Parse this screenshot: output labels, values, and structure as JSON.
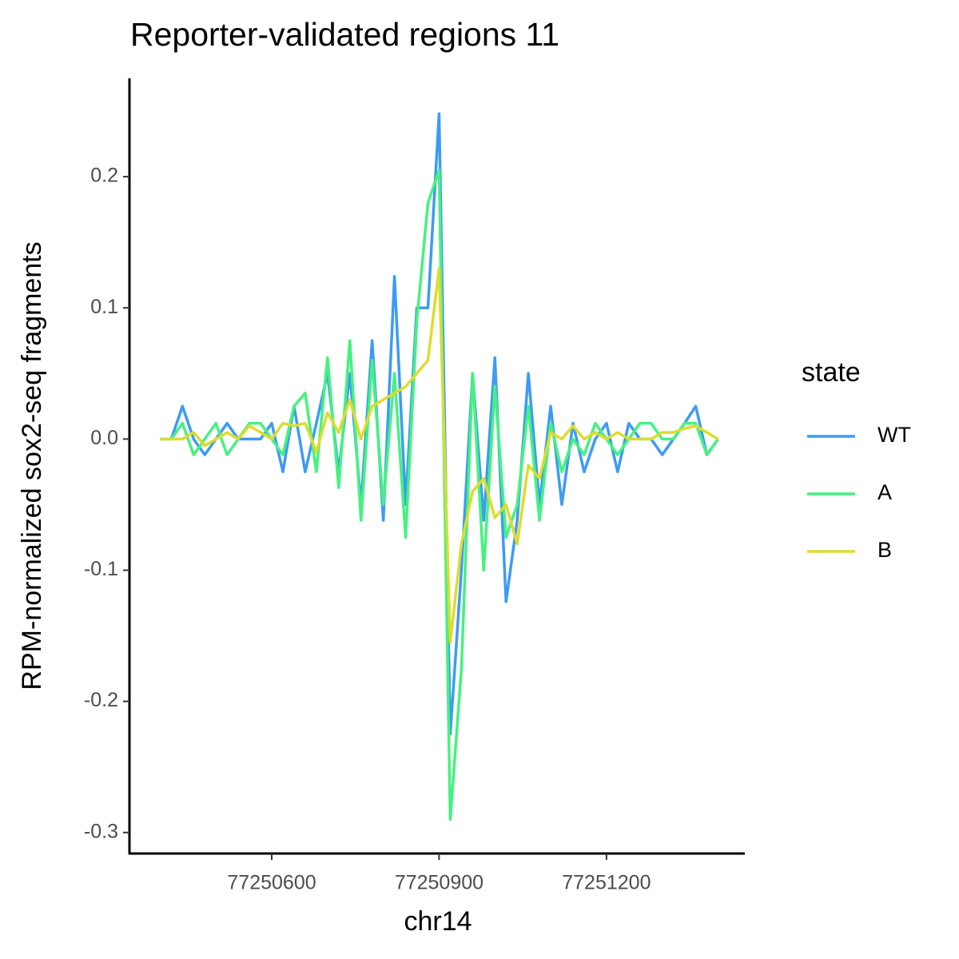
{
  "chart_data": {
    "type": "line",
    "title": "Reporter-validated regions 11",
    "x_label": "chr14",
    "y_label": "RPM-normalized sox2-seq fragments",
    "legend_title": "state",
    "legend_position": "right",
    "x": [
      77250400,
      77250420,
      77250440,
      77250460,
      77250480,
      77250500,
      77250520,
      77250540,
      77250560,
      77250580,
      77250600,
      77250620,
      77250640,
      77250660,
      77250680,
      77250700,
      77250720,
      77250740,
      77250760,
      77250780,
      77250800,
      77250820,
      77250840,
      77250860,
      77250880,
      77250900,
      77250920,
      77250940,
      77250960,
      77250980,
      77251000,
      77251020,
      77251040,
      77251060,
      77251080,
      77251100,
      77251120,
      77251140,
      77251160,
      77251180,
      77251200,
      77251220,
      77251240,
      77251260,
      77251280,
      77251300,
      77251320,
      77251340,
      77251360,
      77251380,
      77251400
    ],
    "series": [
      {
        "name": "WT",
        "color": "#3d9bf5",
        "values": [
          0,
          0,
          0.025,
          0,
          -0.012,
          0,
          0.012,
          0,
          0,
          0,
          0.012,
          -0.025,
          0.025,
          -0.025,
          0.012,
          0.05,
          -0.025,
          0.05,
          -0.05,
          0.075,
          -0.062,
          0.124,
          -0.05,
          0.1,
          0.1,
          0.248,
          -0.225,
          -0.1,
          0.05,
          -0.062,
          0.062,
          -0.124,
          -0.062,
          0.05,
          -0.05,
          0.025,
          -0.05,
          0.012,
          -0.025,
          0,
          0.012,
          -0.025,
          0.012,
          0,
          0,
          -0.012,
          0,
          0.012,
          0.025,
          -0.012,
          0
        ]
      },
      {
        "name": "A",
        "color": "#45f27f",
        "values": [
          0,
          0,
          0.012,
          -0.012,
          0,
          0.012,
          -0.012,
          0,
          0.012,
          0.012,
          0,
          -0.012,
          0.025,
          0.035,
          -0.025,
          0.062,
          -0.037,
          0.075,
          -0.062,
          0.06,
          -0.05,
          0.05,
          -0.075,
          0.09,
          0.18,
          0.205,
          -0.29,
          -0.175,
          0.05,
          -0.1,
          0.04,
          -0.075,
          -0.05,
          0.025,
          -0.062,
          0.012,
          -0.025,
          0,
          -0.012,
          0.012,
          0,
          -0.012,
          0,
          0.012,
          0.012,
          0,
          0,
          0.012,
          0.012,
          -0.012,
          0
        ]
      },
      {
        "name": "B",
        "color": "#dcdc30",
        "values": [
          0,
          0,
          0,
          0.005,
          -0.005,
          0,
          0.005,
          0,
          0.01,
          0.005,
          0,
          0.012,
          0.01,
          0.012,
          -0.01,
          0.02,
          0.005,
          0.03,
          0,
          0.025,
          0.03,
          0.035,
          0.04,
          0.05,
          0.06,
          0.13,
          -0.155,
          -0.08,
          -0.04,
          -0.03,
          -0.06,
          -0.05,
          -0.08,
          -0.02,
          -0.03,
          0.005,
          0,
          0.01,
          0,
          0.005,
          0,
          0.005,
          0,
          0,
          0,
          0.005,
          0.005,
          0.008,
          0.01,
          0.005,
          0
        ]
      }
    ],
    "xlim": [
      77250345,
      77251448
    ],
    "xticks": [
      77250600,
      77250900,
      77251200
    ],
    "ylim": [
      -0.316,
      0.275
    ],
    "yticks": [
      {
        "value": -0.3,
        "label": "-0.3"
      },
      {
        "value": -0.2,
        "label": "-0.2"
      },
      {
        "value": -0.1,
        "label": "-0.1"
      },
      {
        "value": 0,
        "label": "0.0"
      },
      {
        "value": 0.1,
        "label": "0.1"
      },
      {
        "value": 0.2,
        "label": "0.2"
      }
    ],
    "grid": false
  }
}
